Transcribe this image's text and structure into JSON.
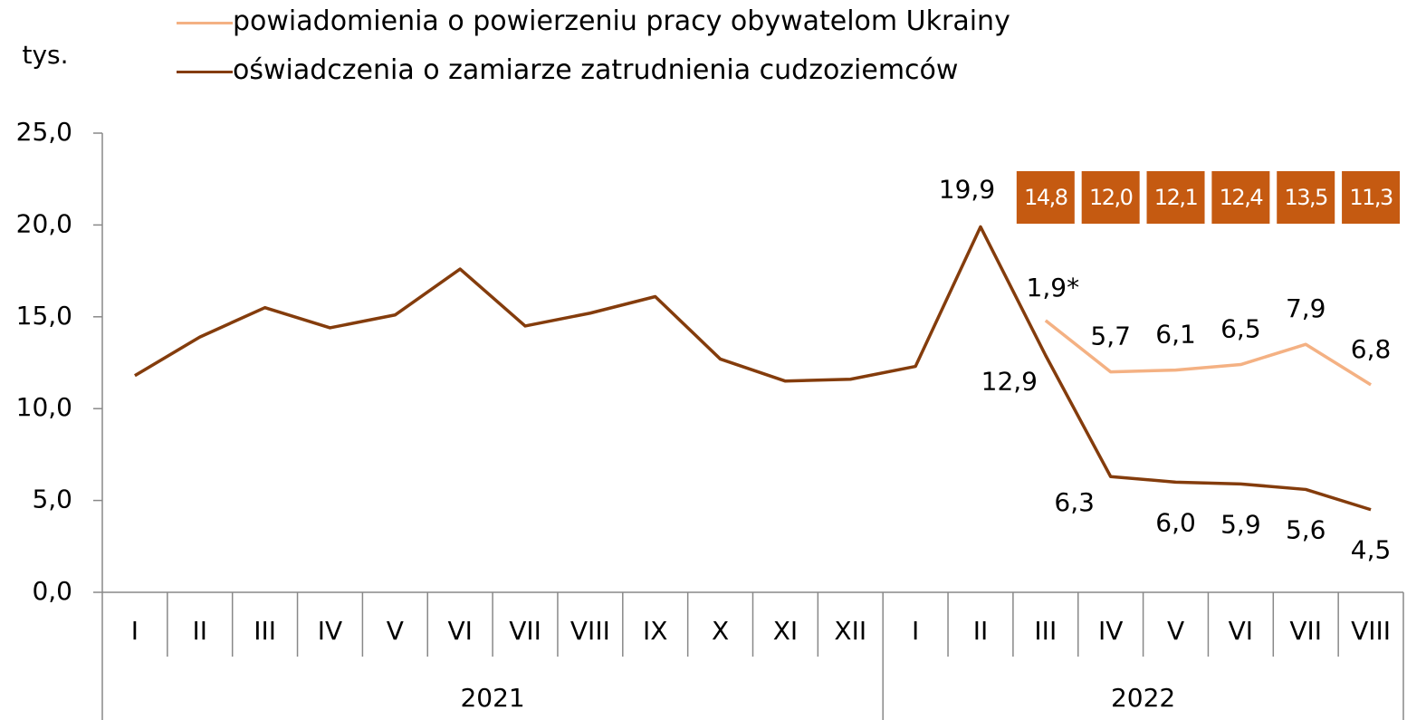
{
  "chart_data": {
    "type": "line",
    "y_label": "tys.",
    "category_groups": [
      {
        "label": "2021",
        "categories": [
          "I",
          "II",
          "III",
          "IV",
          "V",
          "VI",
          "VII",
          "VIII",
          "IX",
          "X",
          "XI",
          "XII"
        ]
      },
      {
        "label": "2022",
        "categories": [
          "I",
          "II",
          "III",
          "IV",
          "V",
          "VI",
          "VII",
          "VIII"
        ]
      }
    ],
    "series": [
      {
        "name": "powiadomienia o powierzeniu pracy obywatelom Ukrainy",
        "color": "#f4b183",
        "values": [
          null,
          null,
          null,
          null,
          null,
          null,
          null,
          null,
          null,
          null,
          null,
          null,
          null,
          null,
          14.8,
          12.0,
          12.1,
          12.4,
          13.5,
          11.3
        ],
        "value_labels": [
          null,
          null,
          null,
          null,
          null,
          null,
          null,
          null,
          null,
          null,
          null,
          null,
          null,
          null,
          "14,8",
          "12,0",
          "12,1",
          "12,4",
          "13,5",
          "11,3"
        ],
        "label_box_color": "#c55a11"
      },
      {
        "name": "oświadczenia o zamiarze zatrudnienia cudzoziemców",
        "color": "#843c0c",
        "values": [
          11.8,
          13.9,
          15.5,
          14.4,
          15.1,
          17.6,
          14.5,
          15.2,
          16.1,
          12.7,
          11.5,
          11.6,
          12.3,
          19.9,
          12.9,
          6.3,
          6.0,
          5.9,
          5.6,
          4.5
        ],
        "value_labels": [
          null,
          null,
          null,
          null,
          null,
          null,
          null,
          null,
          null,
          null,
          null,
          null,
          null,
          "19,9",
          "12,9",
          "6,3",
          "6,0",
          "5,9",
          "5,6",
          "4,5"
        ]
      }
    ],
    "annotations": [
      "1,9*",
      "5,7",
      "6,1",
      "6,5",
      "7,9",
      "6,8"
    ],
    "ylim": [
      0,
      25
    ],
    "yticks": [
      {
        "value": 0,
        "label": "0,0"
      },
      {
        "value": 5,
        "label": "5,0"
      },
      {
        "value": 10,
        "label": "10,0"
      },
      {
        "value": 15,
        "label": "15,0"
      },
      {
        "value": 20,
        "label": "20,0"
      },
      {
        "value": 25,
        "label": "25,0"
      }
    ],
    "legend": "top"
  }
}
